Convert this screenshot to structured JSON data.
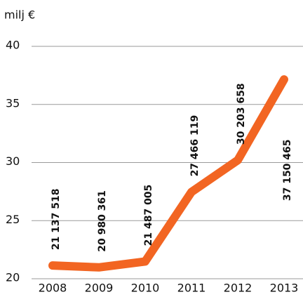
{
  "chart_data": {
    "type": "line",
    "y_label": "milj €",
    "categories": [
      "2008",
      "2009",
      "2010",
      "2011",
      "2012",
      "2013"
    ],
    "series": [
      {
        "name": null,
        "color": "#f26522",
        "values": [
          21.137518,
          20.980361,
          21.487005,
          27.466119,
          30.203658,
          37.150465
        ],
        "value_labels": [
          "21 137 518",
          "20 980 361",
          "21 487 005",
          "27 466 119",
          "30 203 658",
          "37 150 465"
        ]
      }
    ],
    "ylim": [
      20,
      40
    ],
    "yticks": [
      20,
      25,
      30,
      35,
      40
    ],
    "grid": true
  }
}
